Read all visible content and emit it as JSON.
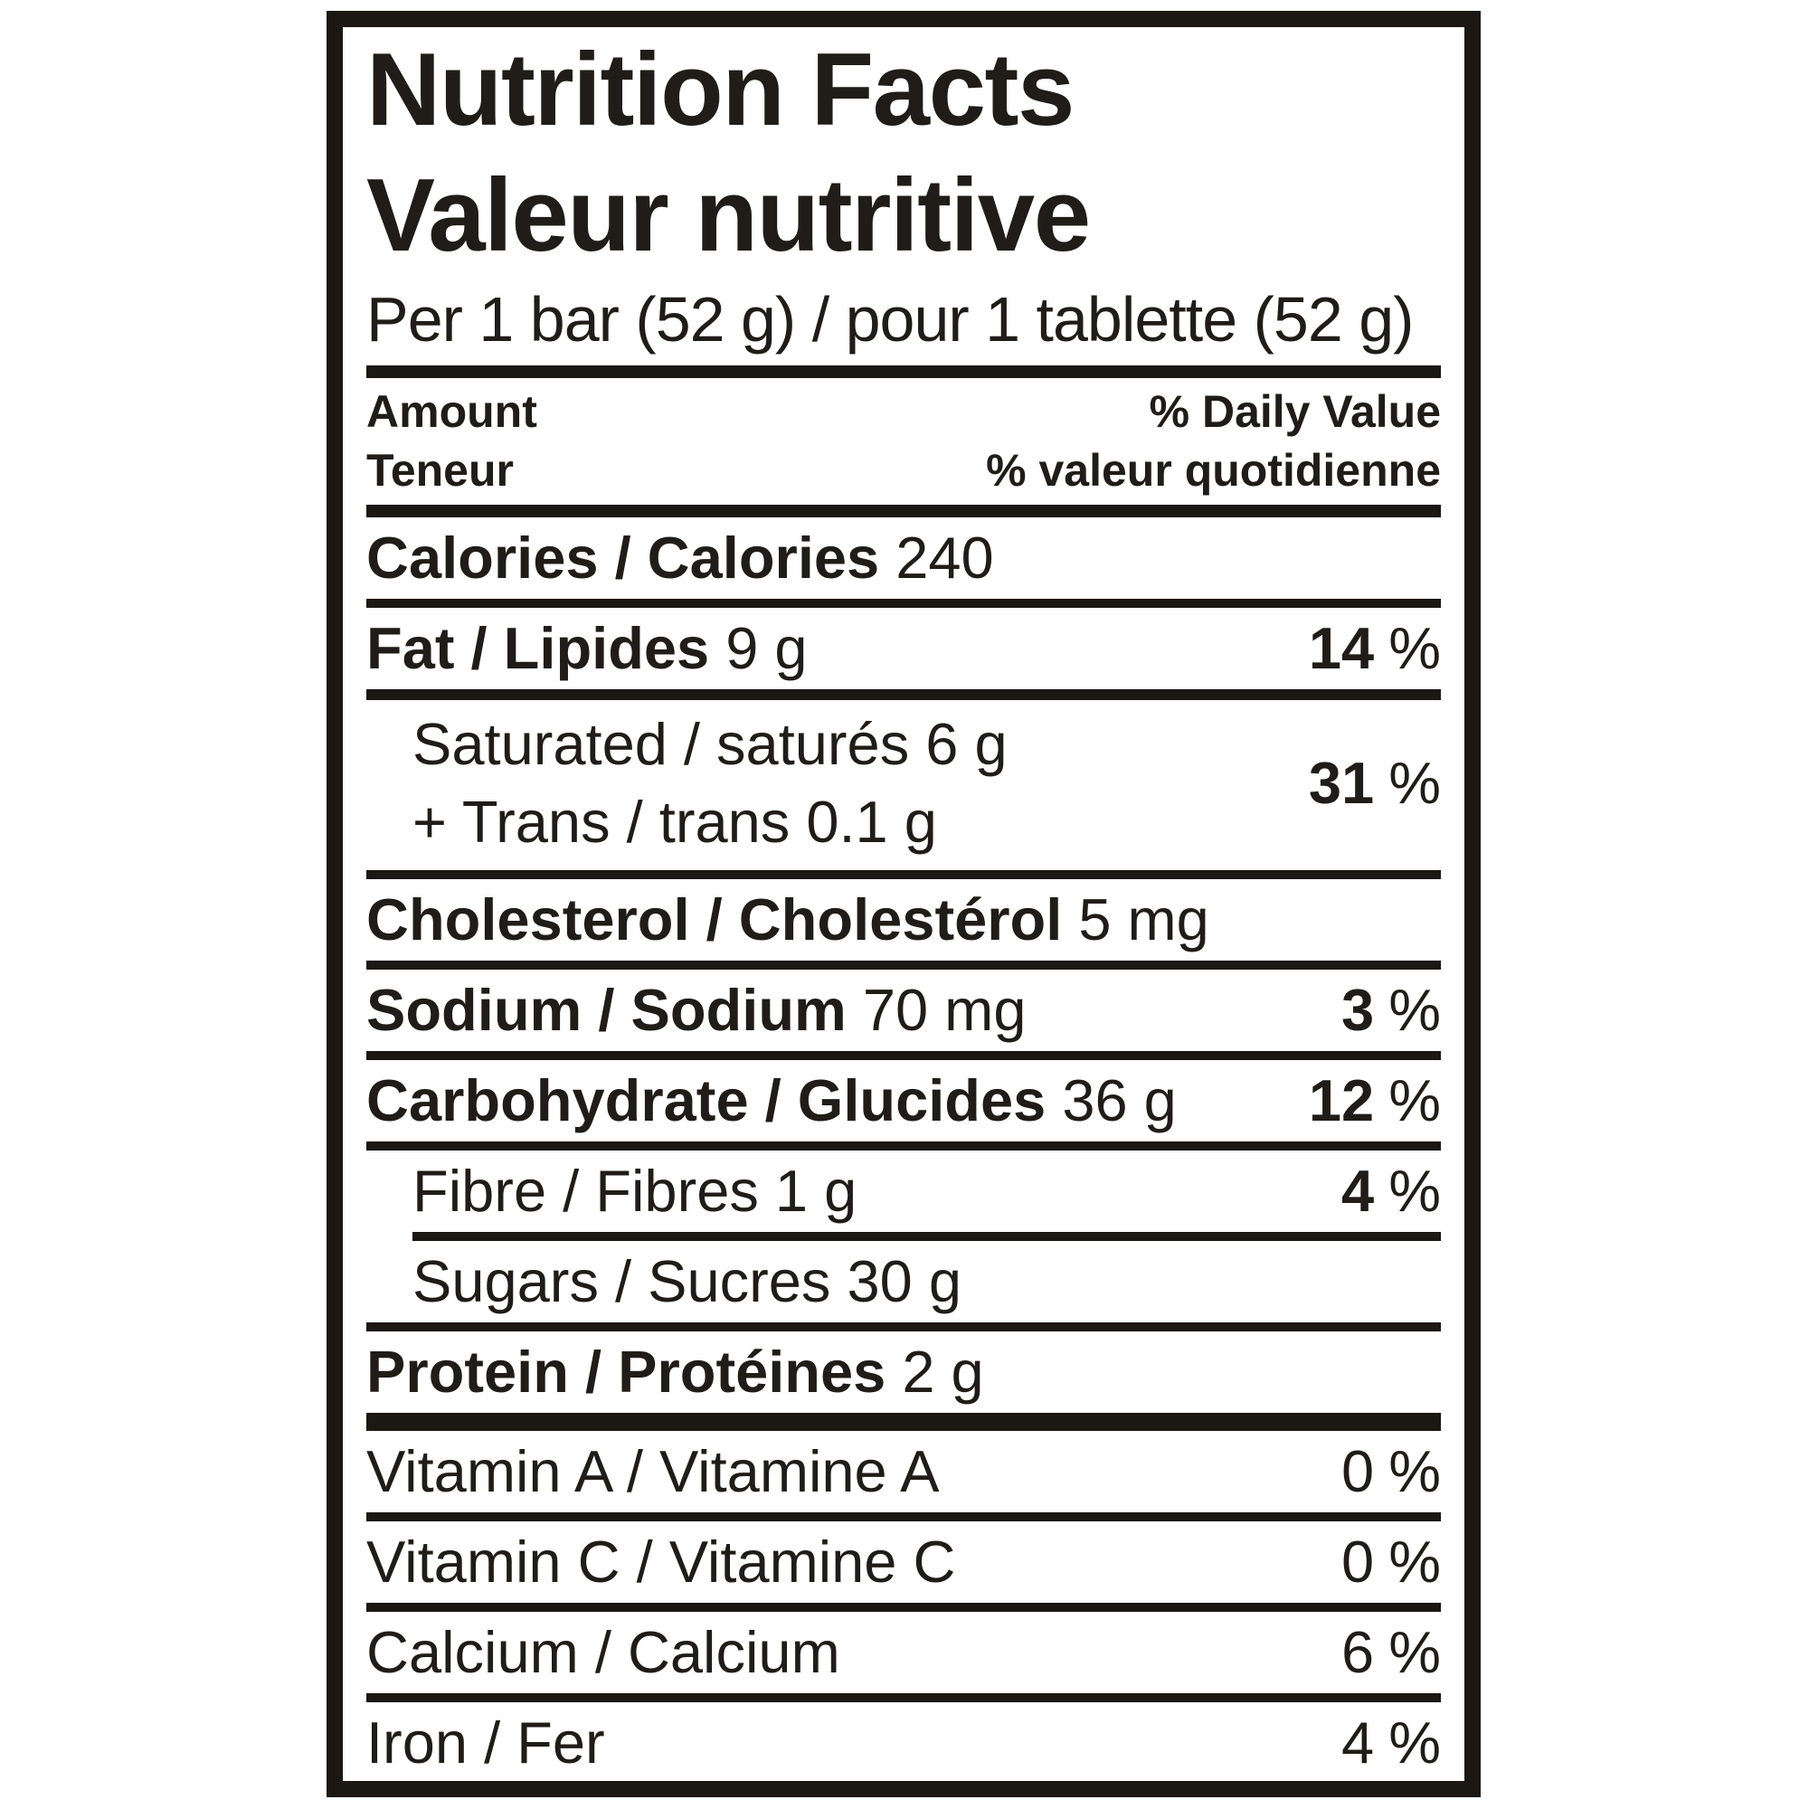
{
  "percent_sign": "%",
  "colors": {
    "ink": "#1b1712"
  },
  "header": {
    "title_en": "Nutrition Facts",
    "title_fr": "Valeur nutritive",
    "serving": "Per 1 bar (52 g) / pour 1 tablette (52 g)"
  },
  "columns": {
    "amount_en": "Amount",
    "amount_fr": "Teneur",
    "dv_en": "% Daily Value",
    "dv_fr": "% valeur quotidienne"
  },
  "rows": {
    "calories": {
      "label": "Calories / Calories",
      "value": "240"
    },
    "fat": {
      "label": "Fat / Lipides",
      "value": "9 g",
      "dv": "14"
    },
    "saturated": {
      "line1": "Saturated / saturés 6 g",
      "line2": "+ Trans / trans 0.1 g",
      "dv": "31"
    },
    "cholesterol": {
      "label": "Cholesterol / Cholestérol",
      "value": "5 mg"
    },
    "sodium": {
      "label": "Sodium / Sodium",
      "value": "70 mg",
      "dv": "3"
    },
    "carbohydrate": {
      "label": "Carbohydrate / Glucides",
      "value": "36 g",
      "dv": "12"
    },
    "fibre": {
      "label": "Fibre / Fibres 1 g",
      "dv": "4"
    },
    "sugars": {
      "label": "Sugars / Sucres 30 g"
    },
    "protein": {
      "label": "Protein / Protéines",
      "value": "2 g"
    },
    "vitamin_a": {
      "label": "Vitamin A / Vitamine A",
      "dv": "0"
    },
    "vitamin_c": {
      "label": "Vitamin C / Vitamine C",
      "dv": "0"
    },
    "calcium": {
      "label": "Calcium / Calcium",
      "dv": "6"
    },
    "iron": {
      "label": "Iron / Fer",
      "dv": "4"
    }
  }
}
